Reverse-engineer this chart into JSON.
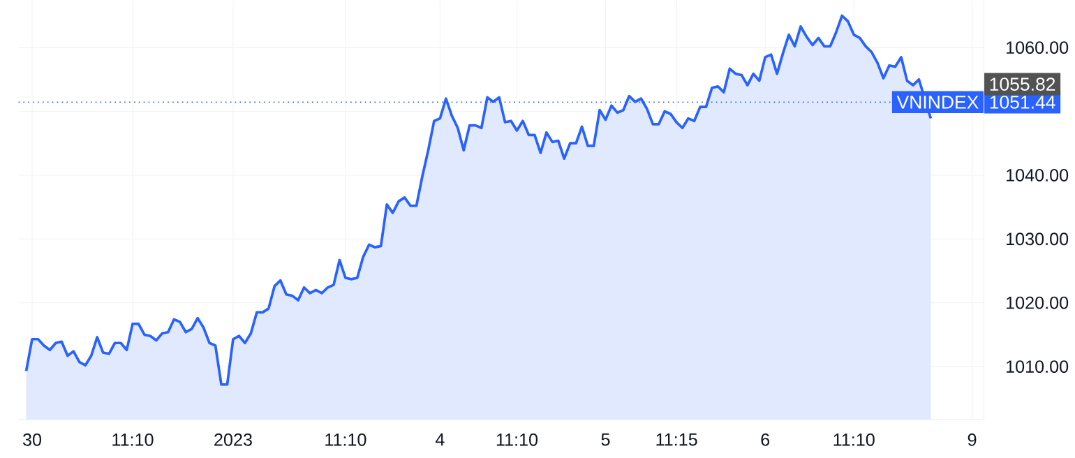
{
  "chart_data": {
    "type": "area",
    "categories": [
      null,
      "30",
      null,
      null,
      null,
      null,
      null,
      null,
      null,
      null,
      null,
      null,
      null,
      null,
      null,
      null,
      null,
      null,
      "11:10",
      null,
      null,
      null,
      null,
      null,
      null,
      null,
      null,
      null,
      null,
      null,
      null,
      null,
      null,
      null,
      null,
      "2023",
      null,
      null,
      null,
      null,
      null,
      null,
      null,
      null,
      null,
      null,
      null,
      null,
      null,
      null,
      null,
      null,
      null,
      null,
      "11:10",
      null,
      null,
      null,
      null,
      null,
      null,
      null,
      null,
      null,
      null,
      null,
      null,
      null,
      null,
      null,
      "4",
      null,
      null,
      null,
      null,
      null,
      null,
      null,
      null,
      null,
      null,
      null,
      null,
      "11:10",
      null,
      null,
      null,
      null,
      null,
      null,
      null,
      null,
      null,
      null,
      null,
      null,
      null,
      null,
      "5",
      null,
      null,
      null,
      null,
      null,
      null,
      null,
      null,
      null,
      null,
      null,
      "11:15",
      null,
      null,
      null,
      null,
      null,
      null,
      null,
      null,
      null,
      null,
      null,
      null,
      null,
      null,
      "6",
      null,
      null,
      null,
      null,
      null,
      null,
      null,
      null,
      null,
      null,
      null,
      null,
      null,
      null,
      "11:10",
      null,
      null,
      null,
      null,
      null,
      null,
      null,
      null,
      null,
      null,
      null,
      null,
      null,
      null,
      null,
      null,
      null,
      null,
      null,
      "9"
    ],
    "series": [
      {
        "name": "VNINDEX",
        "color": "#2962ff",
        "values": [
          1009.3,
          1014.3,
          1014.3,
          1013.3,
          1012.6,
          1013.7,
          1013.9,
          1011.7,
          1012.4,
          1010.7,
          1010.2,
          1011.7,
          1014.6,
          1012.2,
          1012.0,
          1013.7,
          1013.7,
          1012.6,
          1016.7,
          1016.7,
          1015.0,
          1014.8,
          1014.1,
          1015.2,
          1015.4,
          1017.4,
          1017.0,
          1015.4,
          1015.9,
          1017.6,
          1016.1,
          1013.7,
          1013.3,
          1007.2,
          1007.2,
          1014.3,
          1014.8,
          1013.7,
          1015.2,
          1018.5,
          1018.5,
          1019.1,
          1022.6,
          1023.5,
          1021.3,
          1021.1,
          1020.4,
          1022.4,
          1021.5,
          1022.0,
          1021.5,
          1022.4,
          1022.8,
          1026.7,
          1023.9,
          1023.7,
          1023.9,
          1027.2,
          1029.1,
          1028.7,
          1028.9,
          1035.4,
          1034.1,
          1035.9,
          1036.5,
          1035.2,
          1035.2,
          1039.8,
          1043.9,
          1048.5,
          1048.9,
          1052.0,
          1049.3,
          1047.4,
          1043.9,
          1047.8,
          1047.8,
          1047.4,
          1052.2,
          1051.5,
          1052.2,
          1048.3,
          1048.5,
          1047.0,
          1048.5,
          1046.3,
          1046.3,
          1043.5,
          1046.7,
          1045.2,
          1045.4,
          1042.6,
          1045.0,
          1045.0,
          1047.6,
          1044.6,
          1044.6,
          1050.2,
          1048.7,
          1050.9,
          1049.8,
          1050.2,
          1052.4,
          1051.5,
          1052.0,
          1050.4,
          1048.0,
          1048.0,
          1050.0,
          1049.6,
          1048.3,
          1047.4,
          1048.9,
          1048.5,
          1050.7,
          1050.7,
          1053.7,
          1053.9,
          1053.0,
          1056.7,
          1055.9,
          1055.7,
          1054.1,
          1055.9,
          1054.8,
          1058.5,
          1058.9,
          1055.9,
          1059.1,
          1062.0,
          1060.2,
          1063.3,
          1061.7,
          1060.4,
          1061.5,
          1060.2,
          1060.2,
          1062.4,
          1065.0,
          1064.1,
          1062.0,
          1061.5,
          1060.2,
          1059.3,
          1057.6,
          1055.2,
          1057.2,
          1057.0,
          1058.5,
          1054.8,
          1054.1,
          1055.0,
          null,
          1048.9,
          null,
          null,
          null,
          null,
          null,
          null,
          null
        ]
      }
    ],
    "ylim": [
      1001.7,
      1067.4
    ],
    "yticks": [
      {
        "value": 1010,
        "label": "1010.00"
      },
      {
        "value": 1020,
        "label": "1020.00"
      },
      {
        "value": 1030,
        "label": "1030.00"
      },
      {
        "value": 1040,
        "label": "1040.00"
      },
      {
        "value": 1050,
        "label": null
      },
      {
        "value": 1060,
        "label": "1060.00"
      }
    ],
    "grid": true,
    "ref_lines": [
      {
        "axis": "y",
        "value": 1051.44,
        "label": "1051.44",
        "color": "#2962ff",
        "line_style": "dotted"
      }
    ],
    "annotations": [
      "1055.82"
    ]
  }
}
